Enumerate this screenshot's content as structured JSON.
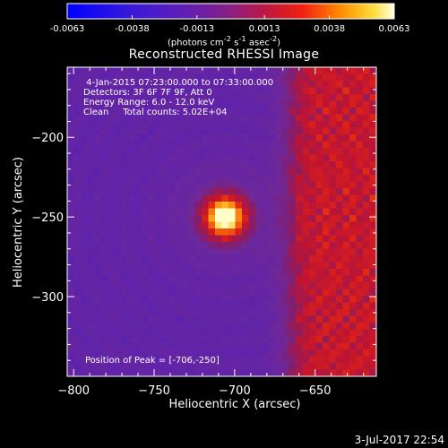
{
  "title": "Reconstructed RHESSI Image",
  "colorbar": {
    "ticks": [
      "-0.0063",
      "-0.0038",
      "-0.0013",
      "0.0013",
      "0.0038",
      "0.0063"
    ],
    "units_html": "(photons cm<sup>-2</sup> s<sup>-1</sup> asec<sup>-2</sup>)",
    "units": "(photons cm-2 s-1 asec-2)"
  },
  "info_lines": [
    " 4-Jan-2015 07:23:00.000 to 07:33:00.000",
    "Detectors: 3F 6F 7F 9F, Att 0",
    "Energy Range: 6.0 - 12.0 keV",
    "Clean     Total counts: 5.02E+04"
  ],
  "peak_label": "Position of Peak = [-706,-250]",
  "datestamp": "3-Jul-2017 22:54",
  "chart_data": {
    "type": "heatmap",
    "title": "Reconstructed RHESSI Image",
    "xlabel": "Heliocentric X (arcsec)",
    "ylabel": "Heliocentric Y (arcsec)",
    "xlim": [
      -804,
      -612
    ],
    "ylim": [
      -350,
      -156
    ],
    "xticks": [
      -800,
      -750,
      -700,
      -650
    ],
    "xtick_labels": [
      "−800",
      "−750",
      "−700",
      "−650"
    ],
    "yticks": [
      -200,
      -250,
      -300
    ],
    "ytick_labels": [
      "−200",
      "−250",
      "−300"
    ],
    "peak": {
      "x": -706,
      "y": -250
    },
    "colorbar_range": [
      -0.0063,
      0.0063
    ],
    "colormap": "rhessi-fire",
    "limb_x": -668
  },
  "colors": {
    "background": "#000000",
    "text": "#ffffff",
    "low": "#1a1aff",
    "mid": "#7a2fa8",
    "high": "#e0281c",
    "peak": "#ffffa0"
  }
}
